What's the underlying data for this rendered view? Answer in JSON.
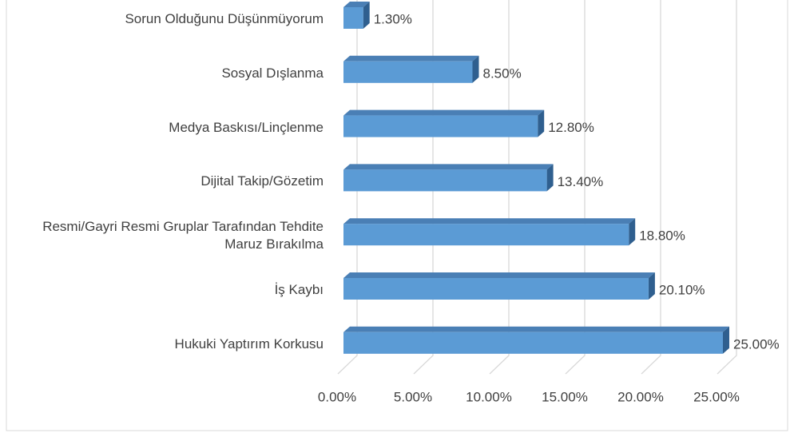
{
  "chart_data": {
    "type": "bar",
    "orientation": "horizontal",
    "categories": [
      "Sorun Olduğunu Düşünmüyorum",
      "Sosyal Dışlanma",
      "Medya Baskısı/Linçlenme",
      "Dijital Takip/Gözetim",
      "Resmi/Gayri Resmi Gruplar Tarafından Tehdite Maruz Bırakılma",
      "İş Kaybı",
      "Hukuki Yaptırım Korkusu"
    ],
    "values": [
      1.3,
      8.5,
      12.8,
      13.4,
      18.8,
      20.1,
      25.0
    ],
    "value_labels": [
      "1.30%",
      "8.50%",
      "12.80%",
      "13.40%",
      "18.80%",
      "20.10%",
      "25.00%"
    ],
    "color": "#5b9bd5",
    "xlim": [
      0,
      25
    ],
    "xticks": [
      {
        "value": 0,
        "label": "0.00%"
      },
      {
        "value": 5,
        "label": "5.00%"
      },
      {
        "value": 10,
        "label": "10.00%"
      },
      {
        "value": 15,
        "label": "15.00%"
      },
      {
        "value": 20,
        "label": "20.00%"
      },
      {
        "value": 25,
        "label": "25.00%"
      }
    ],
    "grid": true
  }
}
